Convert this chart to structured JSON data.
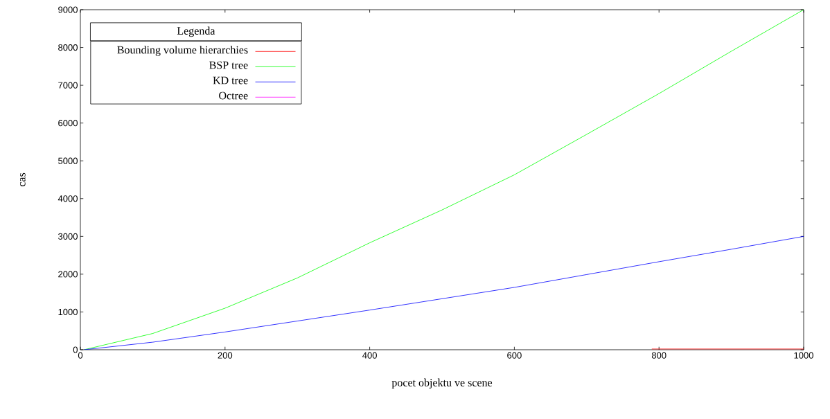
{
  "chart_data": {
    "type": "line",
    "xlabel": "pocet objektu ve scene",
    "ylabel": "cas",
    "legend_title": "Legenda",
    "legend": "top left",
    "grid": false,
    "marker": "none",
    "line_style": "solid",
    "xlim": [
      0,
      1000
    ],
    "ylim": [
      0,
      9000
    ],
    "xticks": [
      0,
      200,
      400,
      600,
      800,
      1000
    ],
    "yticks": [
      0,
      1000,
      2000,
      3000,
      4000,
      5000,
      6000,
      7000,
      8000,
      9000
    ],
    "series": [
      {
        "name": "Bounding volume hierarchies",
        "color": "#ff0000",
        "x": [
          790,
          1000
        ],
        "values": [
          20,
          20
        ]
      },
      {
        "name": "BSP tree",
        "color": "#00ff00",
        "x": [
          5,
          100,
          200,
          300,
          400,
          500,
          600,
          700,
          800,
          900,
          1000
        ],
        "values": [
          0,
          430,
          1100,
          1900,
          2830,
          3700,
          4630,
          5700,
          6780,
          7900,
          9000
        ]
      },
      {
        "name": "KD tree",
        "color": "#0000ff",
        "x": [
          5,
          100,
          200,
          300,
          400,
          500,
          600,
          700,
          800,
          900,
          1000
        ],
        "values": [
          0,
          200,
          470,
          760,
          1050,
          1350,
          1650,
          1990,
          2330,
          2660,
          3000
        ]
      },
      {
        "name": "Octree",
        "color": "#ff00ff"
      }
    ]
  }
}
